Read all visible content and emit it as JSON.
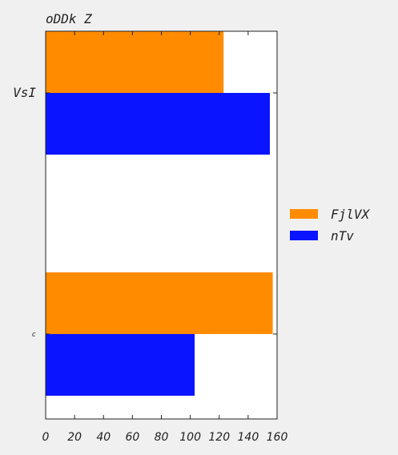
{
  "chart_data": {
    "type": "bar",
    "orientation": "horizontal",
    "title": "oDDk Z",
    "xlabel": "",
    "ylabel": "",
    "categories": [
      "VsI",
      "c"
    ],
    "series": [
      {
        "name": "FjlVX",
        "color": "#ff8c00",
        "values": [
          123,
          157
        ]
      },
      {
        "name": "nTv",
        "color": "#0a14ff",
        "values": [
          155,
          103
        ]
      }
    ],
    "xlim": [
      0,
      160
    ],
    "xticks": [
      "0",
      "20",
      "40",
      "60",
      "80",
      "100",
      "120",
      "140",
      "160"
    ],
    "grid": false,
    "legend_position": "right"
  }
}
